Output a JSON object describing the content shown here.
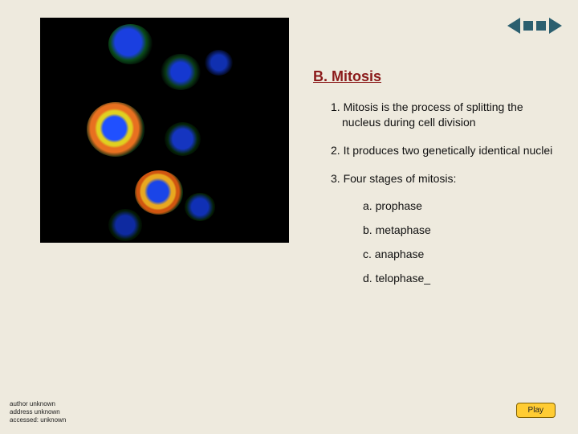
{
  "colors": {
    "background": "#eeeade",
    "title": "#8b1a1a",
    "text": "#111111",
    "nav": "#2b5f6f",
    "play_bg": "#ffcc33",
    "play_border": "#806000"
  },
  "section_title": "B. Mitosis",
  "points": [
    "1. Mitosis is the process of splitting the nucleus during cell division",
    "2. It produces two genetically identical nuclei",
    "3. Four stages of mitosis:"
  ],
  "subpoints": [
    "a. prophase",
    "b. metaphase",
    "c. anaphase",
    "d. telophase_"
  ],
  "credits": {
    "author": "author unknown",
    "address": "address unknown",
    "accessed": "accessed: unknown"
  },
  "play_label": "Play",
  "image": {
    "description": "fluorescence microscopy of dividing cells",
    "cells": [
      {
        "color_core": "#1a3fe0",
        "ring": "#0a4a1a"
      },
      {
        "color_core": "#2050ff",
        "ring": "#e87020"
      },
      {
        "color_core": "#1a45e8",
        "ring": "#d05510"
      }
    ],
    "background": "#000000"
  }
}
